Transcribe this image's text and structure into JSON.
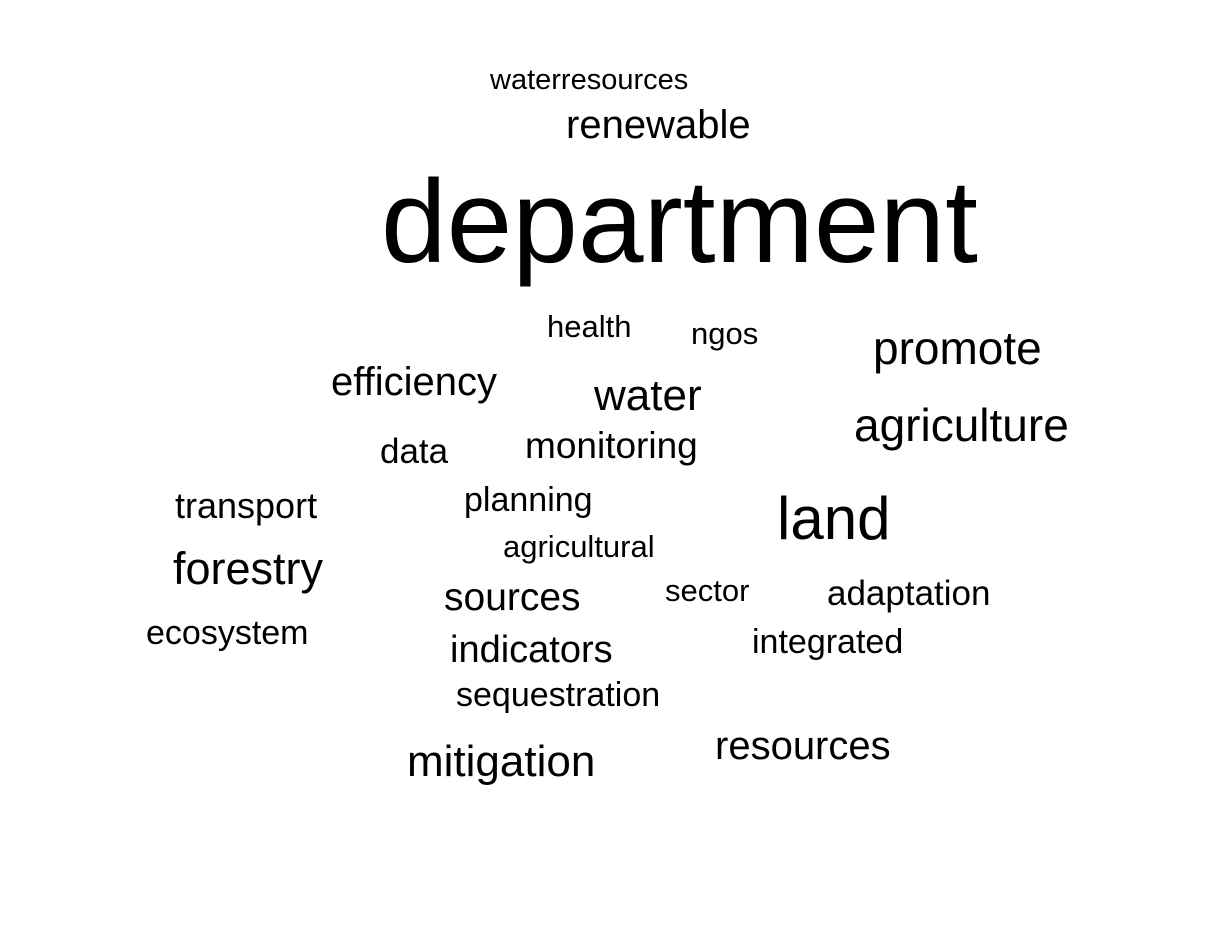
{
  "words": {
    "waterresources": "waterresources",
    "renewable": "renewable",
    "department": "department",
    "health": "health",
    "ngos": "ngos",
    "promote": "promote",
    "efficiency": "efficiency",
    "water": "water",
    "agriculture": "agriculture",
    "data": "data",
    "monitoring": "monitoring",
    "transport": "transport",
    "planning": "planning",
    "land": "land",
    "agricultural": "agricultural",
    "forestry": "forestry",
    "sources": "sources",
    "sector": "sector",
    "adaptation": "adaptation",
    "ecosystem": "ecosystem",
    "indicators": "indicators",
    "integrated": "integrated",
    "sequestration": "sequestration",
    "resources": "resources",
    "mitigation": "mitigation"
  }
}
